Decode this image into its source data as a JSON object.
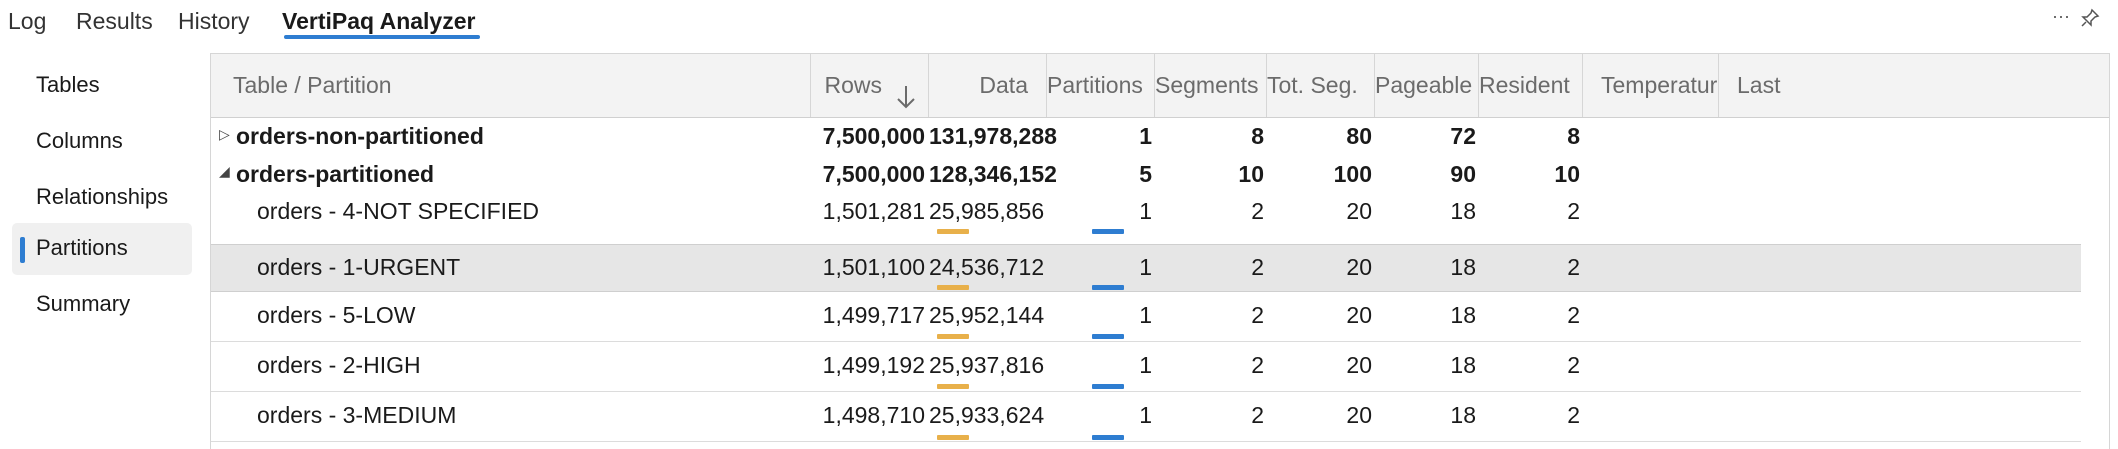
{
  "tabs": [
    {
      "label": "Log",
      "active": false
    },
    {
      "label": "Results",
      "active": false
    },
    {
      "label": "History",
      "active": false
    },
    {
      "label": "VertiPaq Analyzer",
      "active": true
    }
  ],
  "window_controls": {
    "more": "···",
    "pin_icon": "pin-icon"
  },
  "sidebar": {
    "items": [
      {
        "label": "Tables",
        "selected": false
      },
      {
        "label": "Columns",
        "selected": false
      },
      {
        "label": "Relationships",
        "selected": false
      },
      {
        "label": "Partitions",
        "selected": true
      },
      {
        "label": "Summary",
        "selected": false
      }
    ]
  },
  "grid": {
    "columns": [
      "Table / Partition",
      "Rows",
      "Data",
      "Partitions",
      "Segments",
      "Tot. Seg.",
      "Pageable",
      "Resident",
      "Temperature",
      "Last"
    ],
    "sort": {
      "column": "Rows",
      "direction": "descending"
    },
    "rows": [
      {
        "name": "orders-non-partitioned",
        "level": 0,
        "expanded": false,
        "rows": "7,500,000",
        "data": "131,978,288",
        "partitions": "1",
        "segments": "8",
        "tot_seg": "80",
        "pageable": "72",
        "resident": "8"
      },
      {
        "name": "orders-partitioned",
        "level": 0,
        "expanded": true,
        "rows": "7,500,000",
        "data": "128,346,152",
        "partitions": "5",
        "segments": "10",
        "tot_seg": "100",
        "pageable": "90",
        "resident": "10"
      },
      {
        "name": "orders - 4-NOT SPECIFIED",
        "level": 1,
        "rows": "1,501,281",
        "data": "25,985,856",
        "partitions": "1",
        "segments": "2",
        "tot_seg": "20",
        "pageable": "18",
        "resident": "2"
      },
      {
        "name": "orders - 1-URGENT",
        "level": 1,
        "selected": true,
        "rows": "1,501,100",
        "data": "24,536,712",
        "partitions": "1",
        "segments": "2",
        "tot_seg": "20",
        "pageable": "18",
        "resident": "2"
      },
      {
        "name": "orders - 5-LOW",
        "level": 1,
        "rows": "1,499,717",
        "data": "25,952,144",
        "partitions": "1",
        "segments": "2",
        "tot_seg": "20",
        "pageable": "18",
        "resident": "2"
      },
      {
        "name": "orders - 2-HIGH",
        "level": 1,
        "rows": "1,499,192",
        "data": "25,937,816",
        "partitions": "1",
        "segments": "2",
        "tot_seg": "20",
        "pageable": "18",
        "resident": "2"
      },
      {
        "name": "orders - 3-MEDIUM",
        "level": 1,
        "rows": "1,498,710",
        "data": "25,933,624",
        "partitions": "1",
        "segments": "2",
        "tot_seg": "20",
        "pageable": "18",
        "resident": "2"
      }
    ]
  },
  "colors": {
    "accent": "#2e7dd1",
    "rows_marker": "#e8b04a",
    "data_marker": "#2e7dd1",
    "selected_row": "#e6e6e6"
  }
}
